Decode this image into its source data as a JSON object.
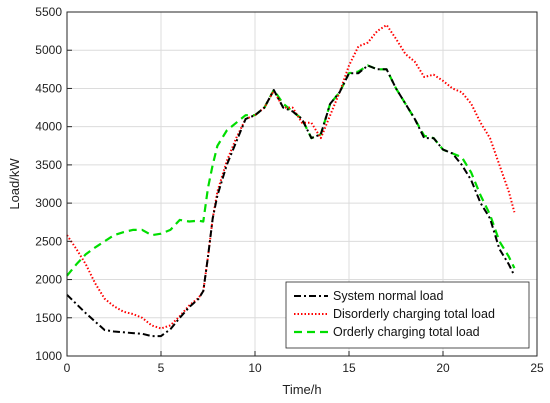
{
  "chart_data": {
    "type": "line",
    "title": "",
    "xlabel": "Time/h",
    "ylabel": "Load/kW",
    "xlim": [
      0,
      25
    ],
    "ylim": [
      1000,
      5500
    ],
    "xticks": [
      0,
      5,
      10,
      15,
      20,
      25
    ],
    "yticks": [
      1000,
      1500,
      2000,
      2500,
      3000,
      3500,
      4000,
      4500,
      5000,
      5500
    ],
    "grid": true,
    "legend_position": "bottom-right",
    "series": [
      {
        "name": "System normal load",
        "color": "#000000",
        "dash": "dash-dot",
        "x": [
          0,
          0.5,
          1,
          1.5,
          2,
          2.5,
          3,
          3.5,
          4,
          4.5,
          5,
          5.5,
          6,
          6.5,
          7,
          7.25,
          7.5,
          7.75,
          8,
          8.5,
          9,
          9.5,
          10,
          10.5,
          11,
          11.5,
          12,
          12.5,
          13,
          13.5,
          14,
          14.5,
          15,
          15.5,
          16,
          16.5,
          17,
          17.5,
          18,
          18.5,
          19,
          19.5,
          20,
          20.5,
          21,
          21.5,
          22,
          22.5,
          23,
          23.5,
          23.8
        ],
        "values": [
          1800,
          1680,
          1560,
          1450,
          1340,
          1320,
          1310,
          1300,
          1290,
          1260,
          1260,
          1350,
          1500,
          1640,
          1750,
          1850,
          2300,
          2800,
          3100,
          3500,
          3800,
          4100,
          4150,
          4250,
          4480,
          4250,
          4200,
          4100,
          3850,
          3900,
          4300,
          4450,
          4700,
          4700,
          4800,
          4750,
          4750,
          4500,
          4300,
          4100,
          3850,
          3850,
          3700,
          3650,
          3500,
          3300,
          3000,
          2800,
          2400,
          2200,
          2050
        ]
      },
      {
        "name": "Disorderly charging total load",
        "color": "#ff0000",
        "dash": "dotted",
        "x": [
          0,
          0.5,
          1,
          1.5,
          2,
          2.5,
          3,
          3.5,
          4,
          4.5,
          5,
          5.5,
          6,
          6.5,
          7,
          7.25,
          7.5,
          7.75,
          8,
          8.5,
          9,
          9.5,
          10,
          10.5,
          11,
          11.5,
          12,
          12.5,
          13,
          13.5,
          14,
          14.5,
          15,
          15.5,
          16,
          16.5,
          17,
          17.5,
          18,
          18.5,
          19,
          19.5,
          20,
          20.5,
          21,
          21.5,
          22,
          22.5,
          23,
          23.5,
          23.8
        ],
        "values": [
          2580,
          2400,
          2200,
          1950,
          1750,
          1650,
          1580,
          1550,
          1500,
          1400,
          1360,
          1400,
          1520,
          1660,
          1760,
          1850,
          2300,
          2800,
          3150,
          3550,
          3850,
          4100,
          4150,
          4250,
          4470,
          4250,
          4250,
          4050,
          4050,
          3850,
          4150,
          4450,
          4800,
          5050,
          5100,
          5250,
          5330,
          5150,
          4950,
          4850,
          4650,
          4680,
          4600,
          4500,
          4450,
          4300,
          4050,
          3850,
          3500,
          3150,
          2880
        ]
      },
      {
        "name": "Orderly charging total load",
        "color": "#00dd00",
        "dash": "dashed",
        "x": [
          0,
          0.5,
          1,
          1.5,
          2,
          2.5,
          3,
          3.5,
          4,
          4.5,
          5,
          5.5,
          6,
          6.5,
          7,
          7.25,
          7.5,
          7.75,
          8,
          8.5,
          9,
          9.5,
          10,
          10.5,
          11,
          11.5,
          12,
          12.5,
          13,
          13.5,
          14,
          14.5,
          15,
          15.5,
          16,
          16.5,
          17,
          17.5,
          18,
          18.5,
          19,
          19.5,
          20,
          20.5,
          21,
          21.5,
          22,
          22.5,
          23,
          23.5,
          23.8
        ],
        "values": [
          2050,
          2200,
          2330,
          2420,
          2500,
          2580,
          2620,
          2650,
          2650,
          2580,
          2600,
          2650,
          2780,
          2760,
          2770,
          2760,
          3200,
          3500,
          3750,
          3950,
          4050,
          4150,
          4150,
          4250,
          4480,
          4300,
          4200,
          4100,
          3850,
          3900,
          4300,
          4450,
          4700,
          4720,
          4800,
          4750,
          4750,
          4500,
          4300,
          4100,
          3880,
          3850,
          3700,
          3650,
          3600,
          3400,
          3100,
          2850,
          2500,
          2300,
          2150
        ]
      }
    ]
  }
}
